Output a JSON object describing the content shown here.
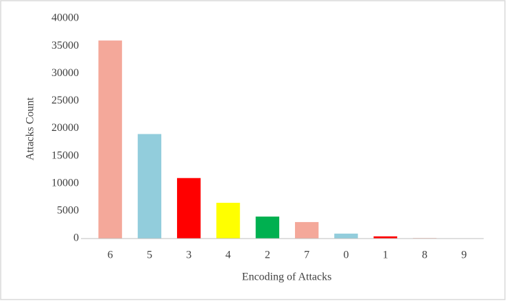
{
  "chart_data": {
    "type": "bar",
    "categories": [
      "6",
      "5",
      "3",
      "4",
      "2",
      "7",
      "0",
      "1",
      "8",
      "9"
    ],
    "values": [
      36000,
      19000,
      11000,
      6500,
      4000,
      3000,
      900,
      400,
      100,
      50
    ],
    "colors": [
      "#f4a89a",
      "#92cddc",
      "#ff0000",
      "#ffff00",
      "#00b050",
      "#f4a89a",
      "#92cddc",
      "#ff0000",
      "#f4a89a",
      "#92cddc"
    ],
    "x_label": "Encoding of Attacks",
    "y_label": "Attacks Count",
    "ylim": [
      0,
      40000
    ],
    "yticks": [
      0,
      5000,
      10000,
      15000,
      20000,
      25000,
      30000,
      35000,
      40000
    ],
    "grid": false
  }
}
